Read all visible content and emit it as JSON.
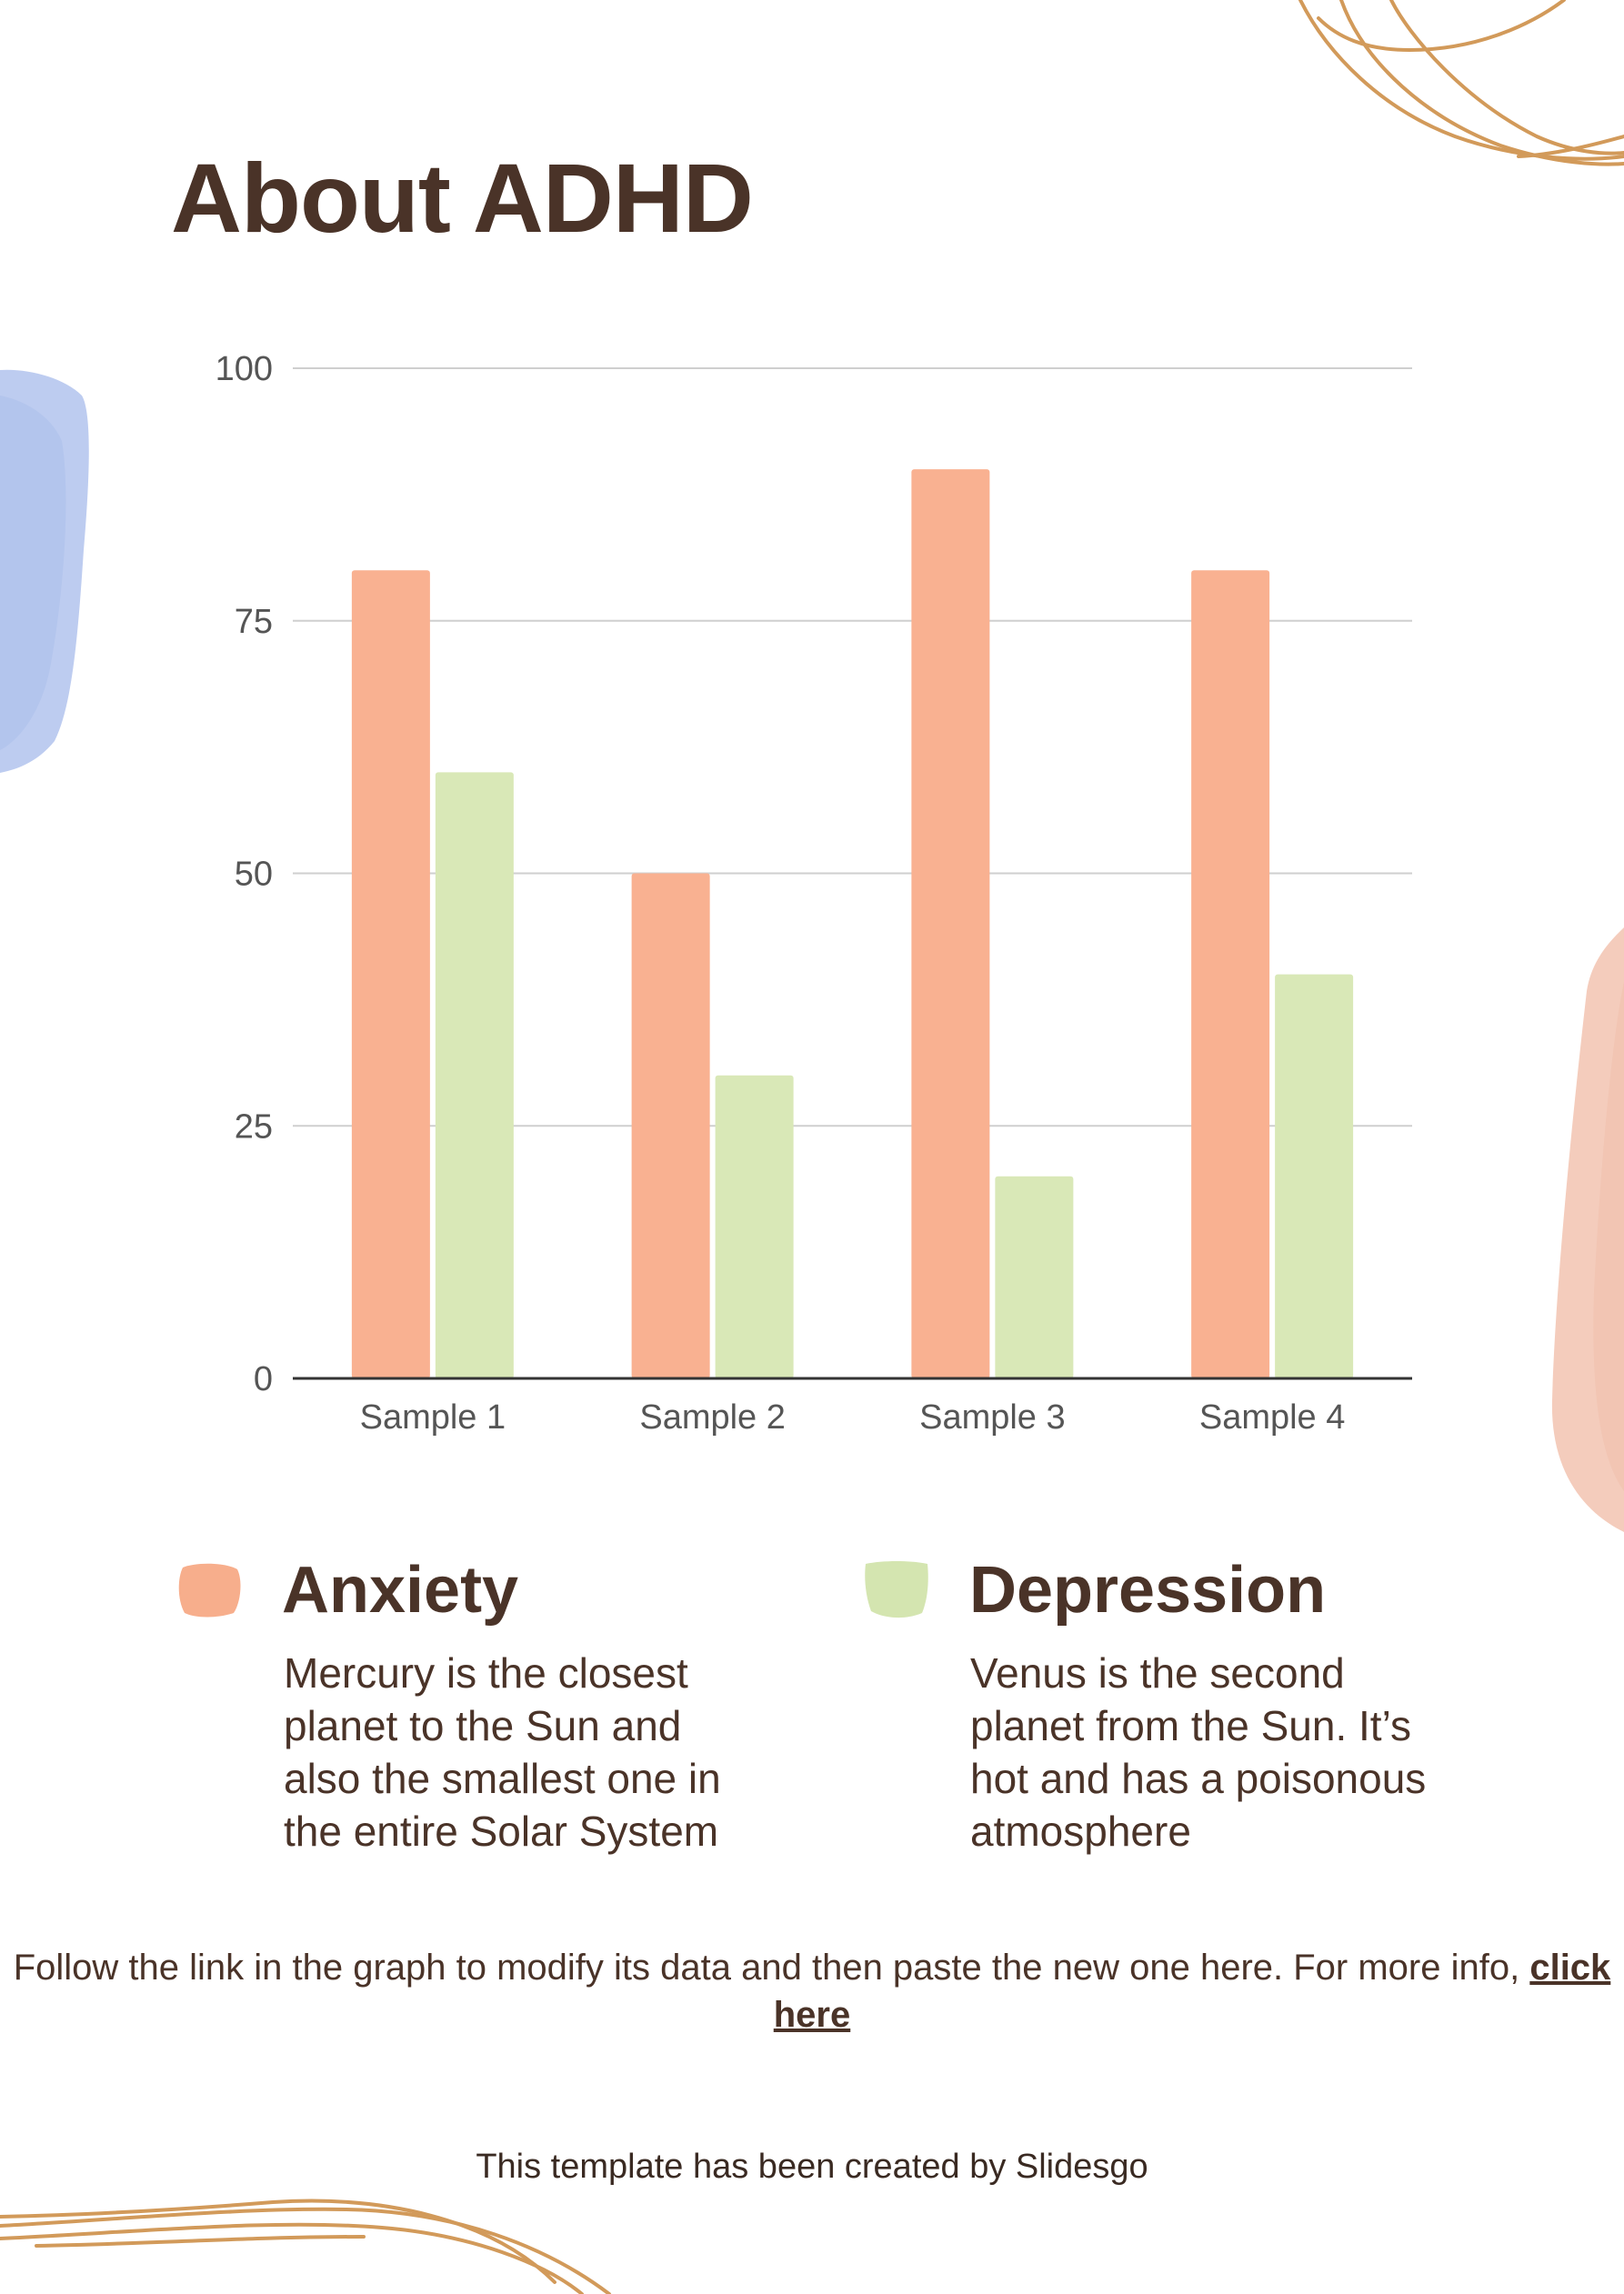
{
  "slide": {
    "title": "About ADHD",
    "note_text": "Follow the link in the graph to modify its data and then paste the new one here. For more info, ",
    "note_link": "click here",
    "credit": "This template has been created by Slidesgo"
  },
  "legend": [
    {
      "heading": "Anxiety",
      "text": "Mercury is the closest\nplanet to the Sun and\nalso the smallest one in\nthe entire Solar System",
      "color": "#f7ae8c"
    },
    {
      "heading": "Depression",
      "text": "Venus is the second\nplanet from the Sun. It’s\nhot and has a poisonous\natmosphere",
      "color": "#d4e5b0"
    }
  ],
  "colors": {
    "text": "#4a3328",
    "series_1": "#f9b191",
    "series_2": "#d9e8b7",
    "gridline": "#cfcfcf",
    "axis": "#333333",
    "accent_line": "#d29a5a",
    "blue_blob": "#b7c7ee",
    "pink_blob": "#f3c9b9"
  },
  "chart_data": {
    "type": "bar",
    "categories": [
      "Sample 1",
      "Sample 2",
      "Sample 3",
      "Sample 4"
    ],
    "series": [
      {
        "values": [
          80,
          50,
          90,
          80
        ]
      },
      {
        "values": [
          60,
          30,
          20,
          40
        ]
      }
    ],
    "ylim": [
      0,
      100
    ],
    "yticks": [
      0,
      25,
      50,
      75,
      100
    ],
    "grid": true,
    "legend": "none"
  }
}
